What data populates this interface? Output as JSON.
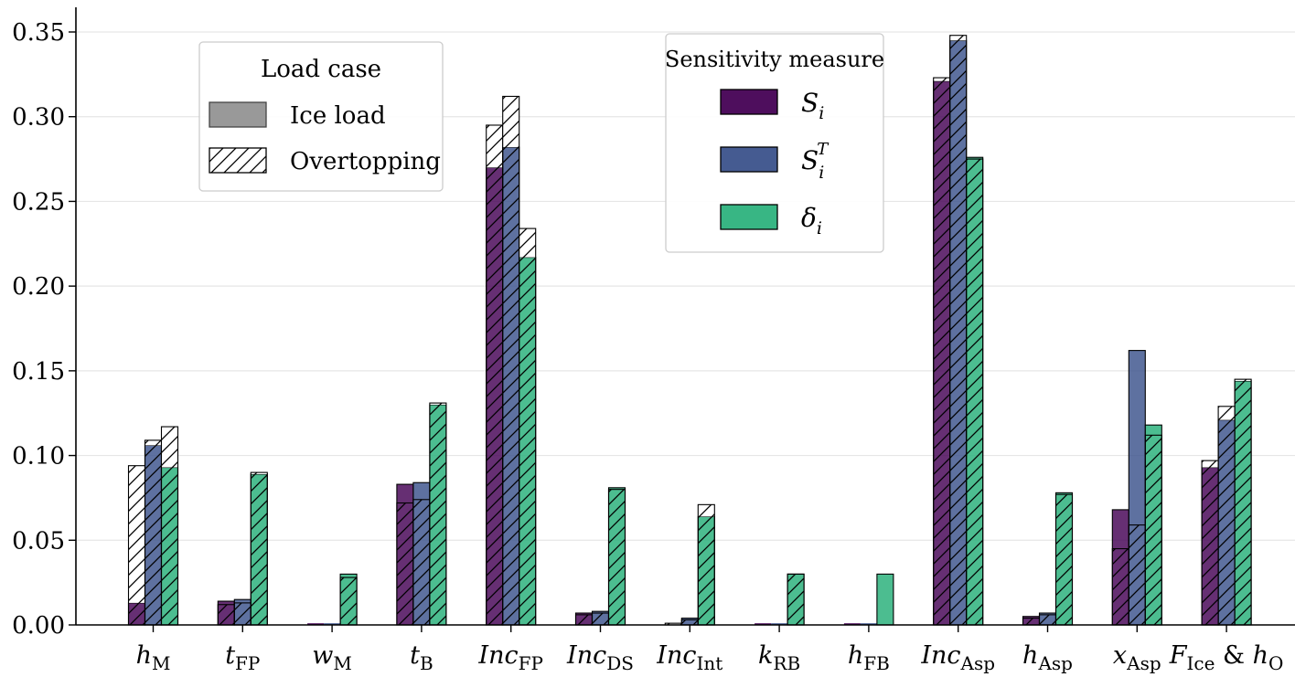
{
  "chart_data": {
    "type": "bar",
    "title": "",
    "xlabel": "",
    "ylabel": "",
    "ylim": [
      0,
      0.36
    ],
    "yticks": [
      "0.00",
      "0.05",
      "0.10",
      "0.15",
      "0.20",
      "0.25",
      "0.30",
      "0.35"
    ],
    "grid": "horizontal",
    "categories": [
      {
        "base": "h",
        "sub": "M"
      },
      {
        "base": "t",
        "sub": "FP"
      },
      {
        "base": "w",
        "sub": "M"
      },
      {
        "base": "t",
        "sub": "B"
      },
      {
        "base": "Inc",
        "sub": "FP"
      },
      {
        "base": "Inc",
        "sub": "DS"
      },
      {
        "base": "Inc",
        "sub": "Int"
      },
      {
        "base": "k",
        "sub": "RB"
      },
      {
        "base": "h",
        "sub": "FB"
      },
      {
        "base": "Inc",
        "sub": "Asp"
      },
      {
        "base": "h",
        "sub": "Asp"
      },
      {
        "base": "x",
        "sub": "Asp"
      },
      {
        "base": "F",
        "sub": "Ice",
        "mid": " & ",
        "base2": "h",
        "sub2": "O"
      }
    ],
    "series": [
      {
        "name": "S_i",
        "color": "#440154",
        "ice_load": [
          0.013,
          0.014,
          0.0,
          0.083,
          0.27,
          0.007,
          0.0,
          0.0,
          0.0,
          0.321,
          0.005,
          0.068,
          0.093
        ],
        "overtopping": [
          0.094,
          0.012,
          0.0,
          0.072,
          0.295,
          0.006,
          0.001,
          0.0,
          0.0,
          0.323,
          0.004,
          0.045,
          0.097
        ]
      },
      {
        "name": "S_i^T",
        "color": "#3b528b",
        "ice_load": [
          0.106,
          0.015,
          0.0,
          0.084,
          0.282,
          0.008,
          0.004,
          0.0,
          0.0,
          0.345,
          0.007,
          0.162,
          0.121
        ],
        "overtopping": [
          0.109,
          0.013,
          0.0,
          0.074,
          0.312,
          0.007,
          0.003,
          0.0,
          0.0,
          0.348,
          0.006,
          0.059,
          0.129
        ]
      },
      {
        "name": "δ_i",
        "color": "#2db27d",
        "ice_load": [
          0.093,
          0.089,
          0.03,
          0.13,
          0.217,
          0.081,
          0.064,
          0.03,
          0.03,
          0.276,
          0.078,
          0.118,
          0.144
        ],
        "overtopping": [
          0.117,
          0.09,
          0.028,
          0.131,
          0.234,
          0.08,
          0.071,
          0.03,
          0.0,
          0.275,
          0.077,
          0.112,
          0.145
        ]
      }
    ],
    "legend_load": {
      "title": "Load case",
      "placement": "upper-left",
      "items": [
        {
          "label": "Ice load",
          "style": "solid-gray"
        },
        {
          "label": "Overtopping",
          "style": "hatched"
        }
      ]
    },
    "legend_measure": {
      "title": "Sensitivity measure",
      "placement": "upper-center",
      "items": [
        {
          "sym": "S",
          "sub": "i",
          "sup": "",
          "color": "#440154"
        },
        {
          "sym": "S",
          "sub": "i",
          "sup": "T",
          "color": "#3b528b"
        },
        {
          "sym": "δ",
          "sub": "i",
          "sup": "",
          "color": "#2db27d"
        }
      ]
    }
  }
}
